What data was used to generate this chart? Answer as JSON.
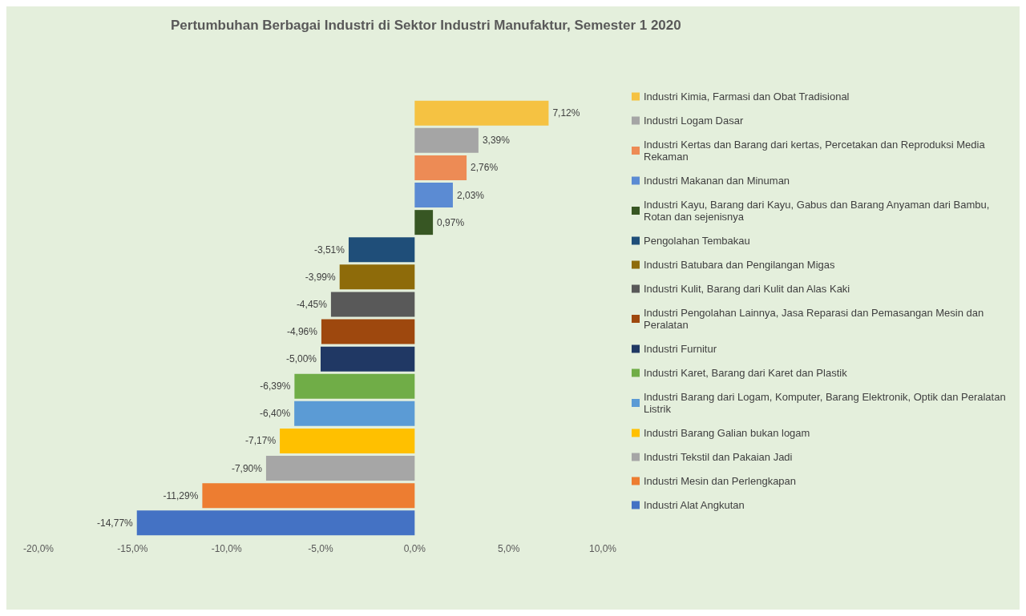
{
  "chart_data": {
    "type": "bar",
    "orientation": "horizontal",
    "title": "Pertumbuhan Berbagai Industri di Sektor Industri Manufaktur, Semester 1 2020",
    "categories": [
      null
    ],
    "series": [
      {
        "name": "Industri Kimia, Farmasi dan Obat Tradisional",
        "color": "#f5c242",
        "values": [
          7.12
        ],
        "value_labels": [
          "7,12%"
        ]
      },
      {
        "name": "Industri Logam Dasar",
        "color": "#a5a5a5",
        "values": [
          3.39
        ],
        "value_labels": [
          "3,39%"
        ]
      },
      {
        "name": "Industri Kertas dan Barang dari kertas, Percetakan dan Reproduksi Media Rekaman",
        "color": "#ed8b55",
        "values": [
          2.76
        ],
        "value_labels": [
          "2,76%"
        ]
      },
      {
        "name": "Industri Makanan dan Minuman",
        "color": "#5b8bd3",
        "values": [
          2.03
        ],
        "value_labels": [
          "2,03%"
        ]
      },
      {
        "name": "Industri Kayu, Barang dari Kayu, Gabus dan Barang Anyaman dari Bambu, Rotan dan sejenisnya",
        "color": "#375623",
        "values": [
          0.97
        ],
        "value_labels": [
          "0,97%"
        ]
      },
      {
        "name": "Pengolahan Tembakau",
        "color": "#1f4e79",
        "values": [
          -3.51
        ],
        "value_labels": [
          "-3,51%"
        ]
      },
      {
        "name": "Industri Batubara dan Pengilangan Migas",
        "color": "#8e6b0a",
        "values": [
          -3.99
        ],
        "value_labels": [
          "-3,99%"
        ]
      },
      {
        "name": "Industri Kulit, Barang dari Kulit dan Alas Kaki",
        "color": "#595959",
        "values": [
          -4.45
        ],
        "value_labels": [
          "-4,45%"
        ]
      },
      {
        "name": "Industri Pengolahan Lainnya, Jasa Reparasi dan Pemasangan Mesin dan Peralatan",
        "color": "#9e480e",
        "values": [
          -4.96
        ],
        "value_labels": [
          "-4,96%"
        ]
      },
      {
        "name": "Industri Furnitur",
        "color": "#203864",
        "values": [
          -5.0
        ],
        "value_labels": [
          "-5,00%"
        ]
      },
      {
        "name": "Industri Karet, Barang dari Karet dan Plastik",
        "color": "#70ad47",
        "values": [
          -6.39
        ],
        "value_labels": [
          "-6,39%"
        ]
      },
      {
        "name": "Industri Barang dari Logam, Komputer, Barang Elektronik, Optik dan Peralatan Listrik",
        "color": "#5b9bd5",
        "values": [
          -6.4
        ],
        "value_labels": [
          "-6,40%"
        ]
      },
      {
        "name": "Industri Barang Galian bukan logam",
        "color": "#ffc000",
        "values": [
          -7.17
        ],
        "value_labels": [
          "-7,17%"
        ]
      },
      {
        "name": "Industri Tekstil dan Pakaian Jadi",
        "color": "#a6a6a6",
        "values": [
          -7.9
        ],
        "value_labels": [
          "-7,90%"
        ]
      },
      {
        "name": "Industri Mesin dan Perlengkapan",
        "color": "#ed7d31",
        "values": [
          -11.29
        ],
        "value_labels": [
          "-11,29%"
        ]
      },
      {
        "name": "Industri Alat Angkutan",
        "color": "#4472c4",
        "values": [
          -14.77
        ],
        "value_labels": [
          "-14,77%"
        ]
      }
    ],
    "xlim": [
      -20,
      10
    ],
    "xticks": [
      {
        "value": -20,
        "label": "-20,0%"
      },
      {
        "value": -15,
        "label": "-15,0%"
      },
      {
        "value": -10,
        "label": "-10,0%"
      },
      {
        "value": -5,
        "label": "-5,0%"
      },
      {
        "value": 0,
        "label": "0,0%"
      },
      {
        "value": 5,
        "label": "5,0%"
      },
      {
        "value": 10,
        "label": "10,0%"
      }
    ],
    "legend": "right"
  }
}
